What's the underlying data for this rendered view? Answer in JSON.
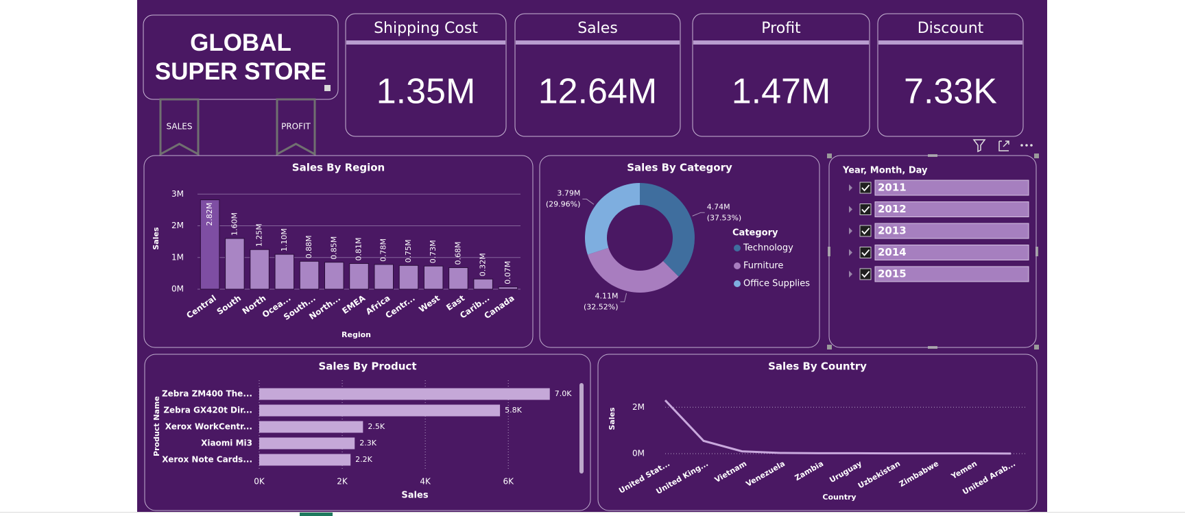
{
  "header": {
    "title": "GLOBAL SUPER STORE",
    "bookmarks": [
      "SALES",
      "PROFIT"
    ]
  },
  "kpis": [
    {
      "label": "Shipping Cost",
      "value": "1.35M"
    },
    {
      "label": "Sales",
      "value": "12.64M"
    },
    {
      "label": "Profit",
      "value": "1.47M"
    },
    {
      "label": "Discount",
      "value": "7.33K"
    }
  ],
  "slicer": {
    "title": "Year, Month, Day",
    "items": [
      "2011",
      "2012",
      "2013",
      "2014",
      "2015"
    ]
  },
  "chart_data": [
    {
      "type": "bar",
      "title": "Sales By Region",
      "x_label": "Region",
      "y_label": "Sales",
      "categories": [
        "Central",
        "South",
        "North",
        "Ocea...",
        "South...",
        "North...",
        "EMEA",
        "Africa",
        "Centr...",
        "West",
        "East",
        "Carib...",
        "Canada"
      ],
      "values": [
        2.82,
        1.6,
        1.25,
        1.1,
        0.88,
        0.85,
        0.81,
        0.78,
        0.75,
        0.73,
        0.68,
        0.32,
        0.07
      ],
      "value_labels": [
        "2.82M",
        "1.60M",
        "1.25M",
        "1.10M",
        "0.88M",
        "0.85M",
        "0.81M",
        "0.78M",
        "0.75M",
        "0.73M",
        "0.68M",
        "0.32M",
        "0.07M"
      ],
      "colors": [
        "#7e4ea3",
        "#a985c4",
        "#a985c4",
        "#a985c4",
        "#a985c4",
        "#a985c4",
        "#a985c4",
        "#a985c4",
        "#a985c4",
        "#a985c4",
        "#a985c4",
        "#a985c4",
        "#a985c4"
      ],
      "ylim": [
        0,
        3.2
      ],
      "yticks": [
        {
          "value": 0,
          "label": "0M"
        },
        {
          "value": 1,
          "label": "1M"
        },
        {
          "value": 2,
          "label": "2M"
        },
        {
          "value": 3,
          "label": "3M"
        }
      ],
      "grid": true
    },
    {
      "type": "donut",
      "title": "Sales By Category",
      "legend_title": "Category",
      "categories": [
        "Technology",
        "Furniture",
        "Office Supplies"
      ],
      "values": [
        4.74,
        4.11,
        3.79
      ],
      "value_labels": [
        "4.74M",
        "4.11M",
        "3.79M"
      ],
      "percent_labels": [
        "(37.53%)",
        "(32.52%)",
        "(29.96%)"
      ],
      "colors": [
        "#3f6e9e",
        "#a87dbf",
        "#7eaedf"
      ]
    },
    {
      "type": "bar",
      "orientation": "horizontal",
      "title": "Sales By Product",
      "x_label": "Sales",
      "y_label": "Product Name",
      "categories": [
        "Zebra ZM400 The...",
        "Zebra GX420t Dir...",
        "Xerox WorkCentr...",
        "Xiaomi Mi3",
        "Xerox Note Cards..."
      ],
      "values": [
        7000,
        5800,
        2500,
        2300,
        2200
      ],
      "value_labels": [
        "7.0K",
        "5.8K",
        "2.5K",
        "2.3K",
        "2.2K"
      ],
      "color": "#c5a8d8",
      "xlim": [
        0,
        7500
      ],
      "xticks": [
        {
          "value": 0,
          "label": "0K"
        },
        {
          "value": 2000,
          "label": "2K"
        },
        {
          "value": 4000,
          "label": "4K"
        },
        {
          "value": 6000,
          "label": "6K"
        }
      ],
      "grid": true
    },
    {
      "type": "line",
      "title": "Sales By Country",
      "x_label": "Country",
      "y_label": "Sales",
      "categories": [
        "United Stat...",
        "United King...",
        "Vietnam",
        "Venezuela",
        "Zambia",
        "Uruguay",
        "Uzbekistan",
        "Zimbabwe",
        "Yemen",
        "United Arab..."
      ],
      "values": [
        2.3,
        0.55,
        0.1,
        0.03,
        0.02,
        0.02,
        0.01,
        0.01,
        0.01,
        0.005
      ],
      "color": "#c9a9dd",
      "ylim": [
        0,
        2.6
      ],
      "yticks": [
        {
          "value": 0,
          "label": "0M"
        },
        {
          "value": 2,
          "label": "2M"
        }
      ],
      "grid": true
    }
  ]
}
